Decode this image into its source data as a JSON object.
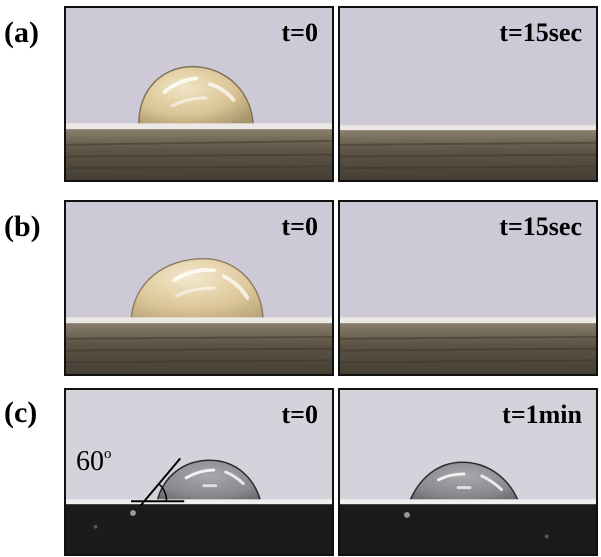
{
  "rows": [
    {
      "label": "(a)",
      "panels": [
        {
          "time": "t=0",
          "has_droplet": true
        },
        {
          "time": "t=15sec",
          "has_droplet": false
        }
      ]
    },
    {
      "label": "(b)",
      "panels": [
        {
          "time": "t=0",
          "has_droplet": true
        },
        {
          "time": "t=15sec",
          "has_droplet": false
        }
      ]
    },
    {
      "label": "(c)",
      "panels": [
        {
          "time": "t=0",
          "has_droplet": true,
          "contact_angle_label": "60",
          "contact_angle_unit": "o"
        },
        {
          "time": "t=1min",
          "has_droplet": true
        }
      ]
    }
  ],
  "colors": {
    "background_rows_ab": "#cdc9d6",
    "background_row_c": "#d6d2dc",
    "substrate_rows_ab": "#5e5547",
    "substrate_row_c": "#1b1b1b",
    "droplet_ab": "#d6c091",
    "droplet_c": "#8d8d91"
  }
}
